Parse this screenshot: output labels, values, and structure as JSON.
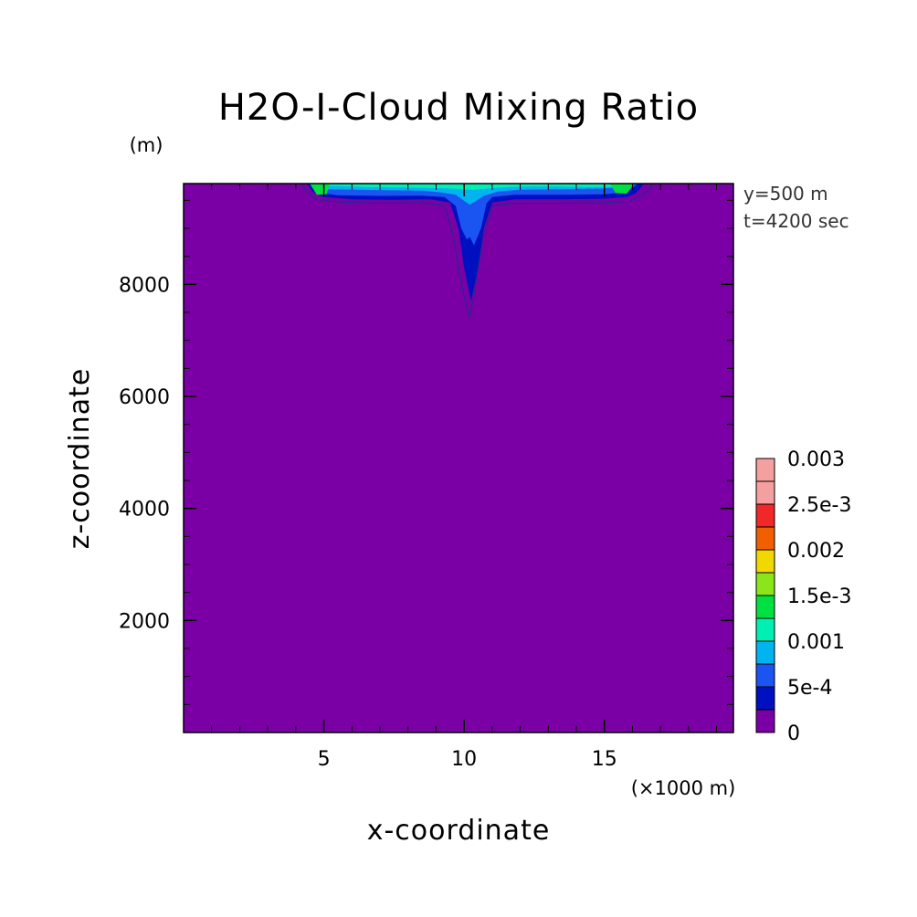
{
  "chart_data": {
    "type": "heatmap",
    "title": "H2O-I-Cloud Mixing Ratio",
    "xlabel": "x-coordinate",
    "ylabel": "z-coordinate",
    "x_unit": "(×1000 m)",
    "y_unit": "(m)",
    "annotations": [
      "y=500 m",
      "t=4200 sec"
    ],
    "xlim": [
      0.0,
      19.6
    ],
    "ylim": [
      0,
      9800
    ],
    "x_ticks": [
      5,
      10,
      15
    ],
    "x_tick_labels": [
      "5",
      "10",
      "15"
    ],
    "y_ticks": [
      2000,
      4000,
      6000,
      8000
    ],
    "y_tick_labels": [
      "2000",
      "4000",
      "6000",
      "8000"
    ],
    "colorbar": {
      "levels": [
        0,
        0.00025,
        0.0005,
        0.00075,
        0.001,
        0.00125,
        0.0015,
        0.00175,
        0.002,
        0.00225,
        0.0025,
        0.00275,
        0.003
      ],
      "labels": [
        "0",
        "5e-4",
        "0.001",
        "1.5e-3",
        "0.002",
        "2.5e-3",
        "0.003"
      ],
      "label_values": [
        0,
        0.0005,
        0.001,
        0.0015,
        0.002,
        0.0025,
        0.003
      ],
      "colors": [
        "#7a00a6",
        "#0010c0",
        "#1a55f2",
        "#00b4f0",
        "#00f0b4",
        "#00e040",
        "#8ae61a",
        "#f0d800",
        "#f06000",
        "#f02828",
        "#f5a0a0",
        "#f5a0a0"
      ]
    },
    "background_value": 0,
    "regions": [
      {
        "name": "cloud anvil outer",
        "min_value": 0.0,
        "x": [
          4.2,
          4.4,
          4.7,
          5.5,
          7.0,
          8.5,
          9.3,
          9.6,
          9.8,
          10.0,
          10.2,
          10.35,
          10.5,
          10.7,
          11.0,
          11.8,
          13.5,
          15.0,
          15.9,
          16.2,
          16.5,
          16.7,
          16.6
        ],
        "z": [
          9800,
          9650,
          9520,
          9470,
          9450,
          9460,
          9400,
          8900,
          8300,
          7800,
          7400,
          7800,
          8300,
          8900,
          9400,
          9450,
          9450,
          9460,
          9480,
          9550,
          9650,
          9750,
          9800
        ]
      },
      {
        "name": "anvil band",
        "min_value": 0.00025,
        "x": [
          4.4,
          4.6,
          5.0,
          6.0,
          7.5,
          8.8,
          9.5,
          9.8,
          10.0,
          10.25,
          10.5,
          10.7,
          11.0,
          11.8,
          13.5,
          15.0,
          15.8,
          16.1,
          16.3,
          16.4
        ],
        "z": [
          9800,
          9650,
          9560,
          9520,
          9510,
          9520,
          9460,
          9000,
          8300,
          7700,
          8300,
          9000,
          9460,
          9520,
          9520,
          9530,
          9560,
          9620,
          9720,
          9800
        ]
      },
      {
        "name": "anvil core",
        "min_value": 0.0005,
        "x": [
          4.5,
          4.8,
          5.5,
          7.0,
          8.5,
          9.3,
          9.7,
          9.9,
          10.1,
          10.2,
          10.35,
          10.6,
          10.8,
          11.0,
          11.8,
          13.5,
          15.0,
          15.8,
          16.2
        ],
        "z": [
          9800,
          9640,
          9590,
          9580,
          9585,
          9560,
          9400,
          9000,
          8800,
          8850,
          8700,
          9000,
          9450,
          9560,
          9600,
          9600,
          9610,
          9650,
          9800
        ]
      },
      {
        "name": "upper layer",
        "min_value": 0.00075,
        "x": [
          4.6,
          5.0,
          6.0,
          7.5,
          8.5,
          9.2,
          9.7,
          10.2,
          10.7,
          11.2,
          12.0,
          13.5,
          14.8,
          15.6,
          16.0
        ],
        "z": [
          9800,
          9700,
          9690,
          9680,
          9675,
          9640,
          9600,
          9420,
          9580,
          9660,
          9690,
          9700,
          9710,
          9730,
          9800
        ]
      },
      {
        "name": "top layer",
        "min_value": 0.001,
        "x": [
          4.6,
          5.2,
          6.5,
          8.0,
          9.0,
          9.6,
          10.2,
          10.8,
          11.5,
          12.5,
          13.5,
          14.5,
          15.3,
          15.9
        ],
        "z": [
          9800,
          9760,
          9740,
          9730,
          9720,
          9710,
          9690,
          9710,
          9740,
          9750,
          9745,
          9740,
          9745,
          9800
        ]
      },
      {
        "name": "left maximum",
        "min_value": 0.00125,
        "x": [
          4.5,
          4.75,
          5.1,
          5.2,
          4.75
        ],
        "z": [
          9800,
          9600,
          9610,
          9800,
          9800
        ]
      },
      {
        "name": "right maximum",
        "min_value": 0.00125,
        "x": [
          15.2,
          15.4,
          15.8,
          16.05,
          15.6
        ],
        "z": [
          9800,
          9630,
          9620,
          9800,
          9800
        ]
      }
    ]
  }
}
